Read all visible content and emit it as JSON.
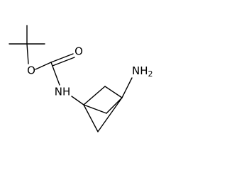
{
  "atoms": [
    {
      "label": "O"
    },
    {
      "label": "O"
    },
    {
      "label": "NH"
    },
    {
      "label": "NH",
      "subscript": "2"
    }
  ]
}
